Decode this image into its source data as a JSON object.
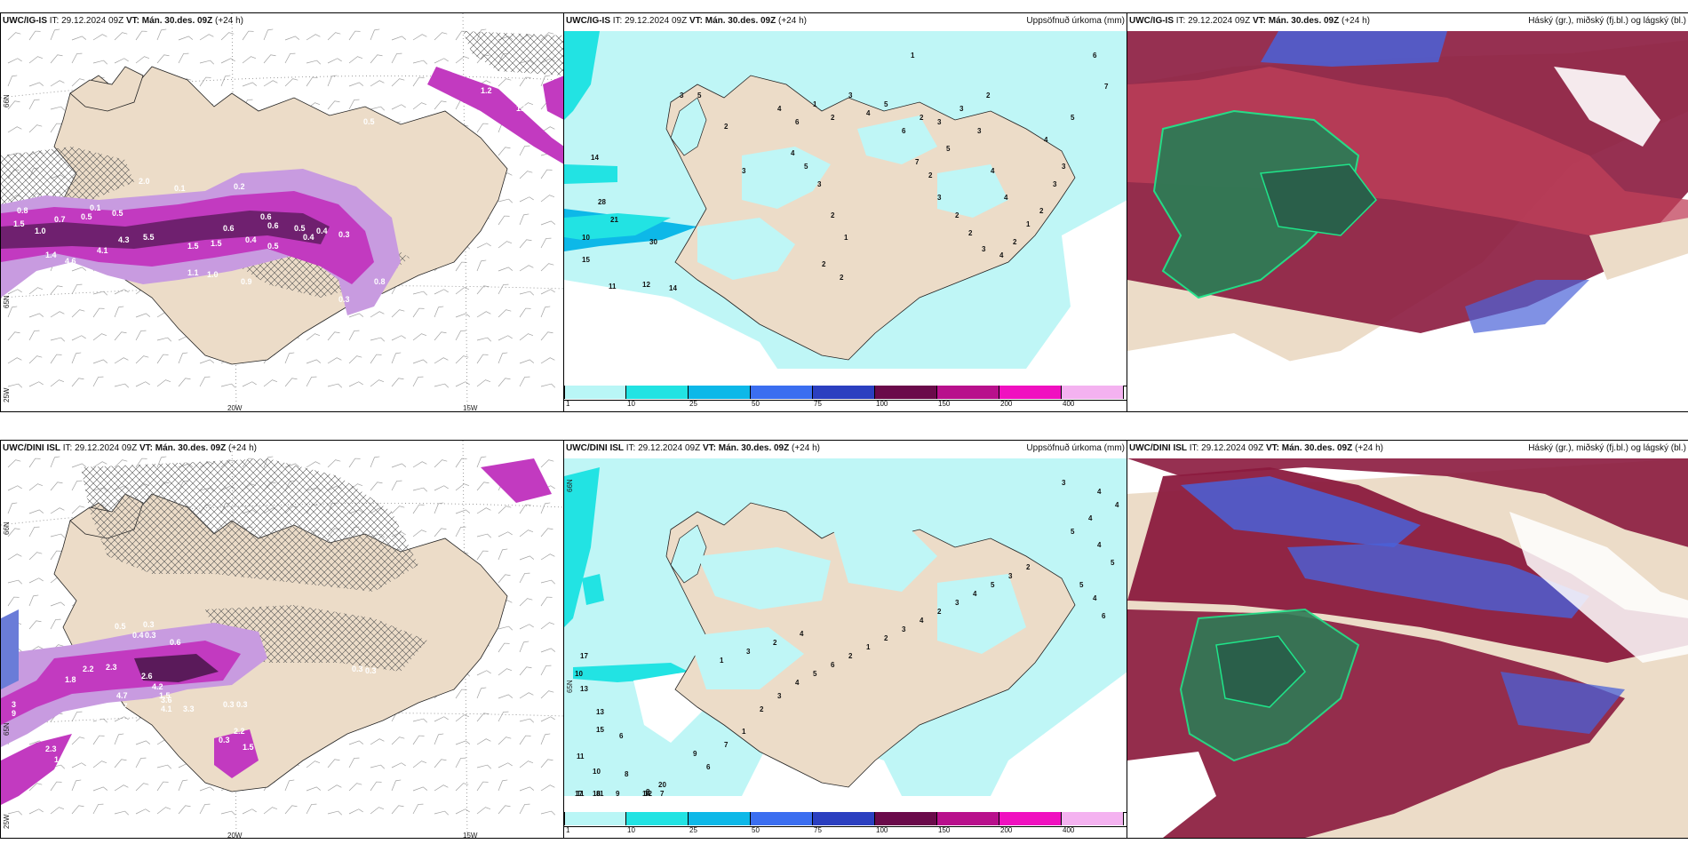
{
  "rows": [
    {
      "precip": {
        "model": "UWC/IG-IS",
        "it_label": "IT:",
        "it_value": "29.12.2024 09Z",
        "vt_label": "VT:",
        "vt_value": "Mán. 30.des. 09Z",
        "lead": "(+24 h)",
        "lat_label": "66N",
        "lat_label2": "65N",
        "lon_label1": "20W",
        "lon_label2": "15W",
        "lat_label3": "25W",
        "values": [
          "0.8",
          "1.5",
          "1.0",
          "0.7",
          "0.5",
          "0.1",
          "0.5",
          "1.4",
          "4.6",
          "4.1",
          "4.3",
          "5.5",
          "1.5",
          "1.5",
          "1.1",
          "1.0",
          "0.6",
          "0.4",
          "0.6",
          "0.5",
          "0.4",
          "0.3",
          "0.5",
          "0.9",
          "0.8",
          "0.3",
          "2.0",
          "0.1",
          "0.2",
          "0.6",
          "0.4",
          "0.5",
          "1.6",
          "1.2"
        ]
      },
      "accum": {
        "model": "UWC/IG-IS",
        "it_label": "IT:",
        "it_value": "29.12.2024 09Z",
        "vt_label": "VT:",
        "vt_value": "Mán. 30.des. 09Z",
        "lead": "(+24 h)",
        "title": "Uppsöfnuð úrkoma (mm)",
        "numbers": [
          "1",
          "6",
          "7",
          "5",
          "2",
          "4",
          "14",
          "28",
          "21",
          "10",
          "15",
          "11",
          "12",
          "14",
          "30",
          "3",
          "5",
          "2",
          "3",
          "4",
          "6",
          "1",
          "2",
          "3",
          "4",
          "5",
          "6",
          "7",
          "2",
          "3",
          "2",
          "2",
          "3",
          "4",
          "2",
          "1",
          "2",
          "3",
          "3",
          "3",
          "4",
          "4",
          "5",
          "3",
          "3",
          "2",
          "4",
          "5",
          "3",
          "2",
          "1",
          "2",
          "2"
        ]
      },
      "cloud": {
        "model": "UWC/IG-IS",
        "it_label": "IT:",
        "it_value": "29.12.2024 09Z",
        "vt_label": "VT:",
        "vt_value": "Mán. 30.des. 09Z",
        "lead": "(+24 h)",
        "title": "Háský (gr.), miðský (fj.bl.) og lágský (bl.)"
      }
    },
    {
      "precip": {
        "model": "UWC/DINI ISL",
        "it_label": "IT:",
        "it_value": "29.12.2024 09Z",
        "vt_label": "VT:",
        "vt_value": "Mán. 30.des. 09Z",
        "lead": "(+24 h)",
        "lat_label": "66N",
        "lat_label2": "65N",
        "lon_label1": "20W",
        "lon_label2": "15W",
        "lat_label3": "25W",
        "values": [
          "0.5",
          "0.3",
          "0.4",
          "0.3",
          "2.2",
          "2.3",
          "1.8",
          "0.6",
          "2.6",
          "4.2",
          "1.5",
          "4.7",
          "3.6",
          "3.3",
          "4.1",
          "2.7",
          "0.3",
          "0.5",
          "0.3",
          "0.3",
          "0.3",
          "0.3",
          "2.2",
          "0.3",
          "1.5",
          "0.7",
          "1.6",
          "9",
          "3",
          "2.3",
          "1.8",
          "2.7"
        ]
      },
      "accum": {
        "model": "UWC/DINI ISL",
        "it_label": "IT:",
        "it_value": "29.12.2024 09Z",
        "vt_label": "VT:",
        "vt_value": "Mán. 30.des. 09Z",
        "lead": "(+24 h)",
        "title": "Uppsöfnuð úrkoma (mm)",
        "lat_label": "66N",
        "lat_label2": "65N",
        "numbers": [
          "3",
          "4",
          "4",
          "4",
          "5",
          "4",
          "5",
          "5",
          "4",
          "6",
          "17",
          "10",
          "13",
          "13",
          "15",
          "6",
          "11",
          "10",
          "8",
          "8",
          "20",
          "14",
          "17",
          "16",
          "7",
          "9",
          "8",
          "11",
          "1",
          "12",
          "9",
          "6",
          "7",
          "1",
          "2",
          "3",
          "4",
          "5",
          "6",
          "2",
          "1",
          "2",
          "3",
          "4",
          "2",
          "3",
          "4",
          "5",
          "3",
          "2",
          "1",
          "3",
          "2",
          "4"
        ]
      },
      "cloud": {
        "model": "UWC/DINI ISL",
        "it_label": "IT:",
        "it_value": "29.12.2024 09Z",
        "vt_label": "VT:",
        "vt_value": "Mán. 30.des. 09Z",
        "lead": "(+24 h)",
        "title": "Háský (gr.), miðský (fj.bl.) og lágský (bl.)"
      }
    }
  ],
  "legend": {
    "ticks": [
      "1",
      "10",
      "25",
      "50",
      "75",
      "100",
      "150",
      "200",
      "400"
    ],
    "colors": [
      "#b9f6f6",
      "#22e3e3",
      "#0db8e8",
      "#3b6ef0",
      "#2b3fc0",
      "#6a0a4a",
      "#b8108c",
      "#f010c0",
      "#f4b2f0"
    ]
  },
  "colors": {
    "land": "#ecdcc8",
    "ice_light": "#bff6f6",
    "precip_light": "#c89be0",
    "precip_mid": "#c23ac0",
    "precip_dark": "#5a1a5a",
    "high_cloud": "#2f7a55",
    "mid_cloud": "#8b1a3e",
    "low_cloud": "#4a62d8",
    "cloud_edge": "#1fe58a"
  }
}
